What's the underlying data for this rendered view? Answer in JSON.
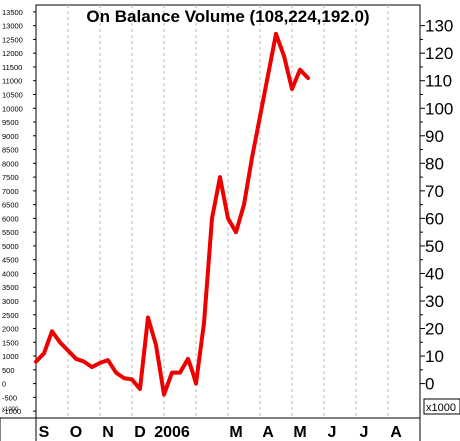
{
  "chart_data": {
    "type": "line",
    "title": "On Balance Volume (108,224,192.0)",
    "left_axis": {
      "ylim": [
        -1250,
        13750
      ],
      "ticks": [
        -1000,
        -500,
        0,
        500,
        1000,
        1500,
        2000,
        2500,
        3000,
        3500,
        4000,
        4500,
        5000,
        5500,
        6000,
        6500,
        7000,
        7500,
        8000,
        8500,
        9000,
        9500,
        10000,
        10500,
        11000,
        11500,
        12000,
        12500,
        13000,
        13500
      ],
      "tick_labels": [
        "-1000",
        "-500",
        "0",
        "500",
        "1000",
        "1500",
        "2000",
        "2500",
        "3000",
        "3500",
        "4000",
        "4500",
        "5000",
        "5500",
        "6000",
        "6500",
        "7000",
        "7500",
        "8000",
        "8500",
        "9000",
        "9500",
        "10000",
        "10500",
        "11000",
        "11500",
        "12000",
        "12500",
        "13000",
        "13500"
      ],
      "cut_label": "x1000"
    },
    "right_axis": {
      "ylim": [
        -12.5,
        137.5
      ],
      "ticks": [
        0,
        10,
        20,
        30,
        40,
        50,
        60,
        70,
        80,
        90,
        100,
        110,
        120,
        130
      ],
      "tick_labels": [
        "0",
        "10",
        "20",
        "30",
        "40",
        "50",
        "60",
        "70",
        "80",
        "90",
        "100",
        "110",
        "120",
        "130"
      ],
      "multiplier_label": "x1000"
    },
    "x_axis": {
      "range": [
        0,
        12
      ],
      "month_labels": [
        {
          "label": "S",
          "x": 0.25
        },
        {
          "label": "O",
          "x": 1.25
        },
        {
          "label": "N",
          "x": 2.25
        },
        {
          "label": "D",
          "x": 3.25
        },
        {
          "label": "2006",
          "x": 4.25
        },
        {
          "label": "M",
          "x": 6.25
        },
        {
          "label": "A",
          "x": 7.25
        },
        {
          "label": "M",
          "x": 8.25
        },
        {
          "label": "J",
          "x": 9.25
        },
        {
          "label": "J",
          "x": 10.25
        },
        {
          "label": "A",
          "x": 11.25
        }
      ],
      "gridlines": [
        1,
        2,
        3,
        4,
        5,
        6,
        7,
        8,
        9,
        10,
        11
      ]
    },
    "grid": true,
    "series": [
      {
        "color": "#ee0000",
        "x": [
          0.0,
          0.25,
          0.5,
          0.75,
          1.0,
          1.25,
          1.5,
          1.75,
          2.0,
          2.25,
          2.5,
          2.75,
          3.0,
          3.25,
          3.5,
          3.75,
          4.0,
          4.25,
          4.5,
          4.75,
          4.9,
          5.0,
          5.25,
          5.5,
          5.75,
          6.0,
          6.25,
          6.5,
          6.75,
          7.0,
          7.25,
          7.5,
          7.75,
          8.0,
          8.25,
          8.5
        ],
        "y": [
          8,
          11,
          19,
          15,
          12,
          9,
          8,
          6,
          7.5,
          8.5,
          4,
          2,
          1.5,
          -2,
          24,
          14,
          -4,
          4,
          4,
          9,
          4,
          0,
          22,
          60,
          75,
          60,
          55,
          65,
          82,
          97,
          112,
          127,
          119,
          107,
          114,
          111
        ]
      }
    ]
  }
}
